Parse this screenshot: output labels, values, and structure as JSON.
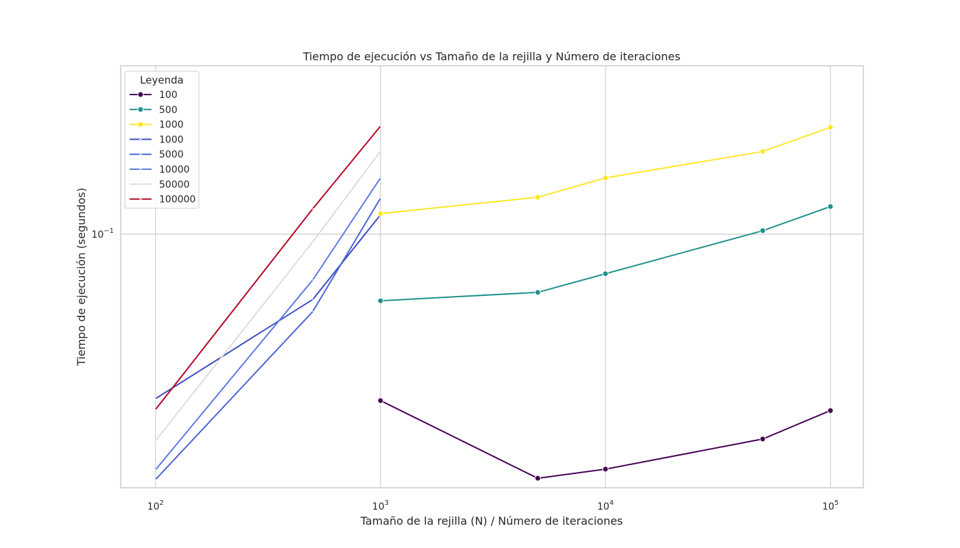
{
  "chart_data": {
    "type": "line",
    "title": "Tiempo de ejecución vs Tamaño de la rejilla y Número de iteraciones",
    "xlabel": "Tamaño de la rejilla (N) / Número de iteraciones",
    "ylabel": "Tiempo de ejecución (segundos)",
    "xscale": "log",
    "yscale": "log",
    "xlim": [
      70,
      140000
    ],
    "ylim": [
      0.0366,
      0.195
    ],
    "x_ticks": [
      {
        "value": 100,
        "base": "10",
        "exp": "2"
      },
      {
        "value": 1000,
        "base": "10",
        "exp": "3"
      },
      {
        "value": 10000,
        "base": "10",
        "exp": "4"
      },
      {
        "value": 100000,
        "base": "10",
        "exp": "5"
      }
    ],
    "y_ticks": [
      {
        "value": 0.1,
        "base": "10",
        "exp": "−1"
      }
    ],
    "grid": true,
    "legend": {
      "title": "Leyenda",
      "placement": "top-left"
    },
    "series": [
      {
        "name": "100",
        "group": "grid",
        "color": "#440154",
        "marker": "circle",
        "x": [
          1000,
          5000,
          10000,
          50000,
          100000
        ],
        "y": [
          0.0517,
          0.038,
          0.0394,
          0.0444,
          0.0497
        ]
      },
      {
        "name": "500",
        "group": "grid",
        "color": "#21918c",
        "marker": "circle",
        "x": [
          1000,
          5000,
          10000,
          50000,
          100000
        ],
        "y": [
          0.0768,
          0.0794,
          0.0855,
          0.1014,
          0.1116
        ]
      },
      {
        "name": "1000",
        "group": "grid",
        "color": "#fde725",
        "marker": "circle",
        "x": [
          1000,
          5000,
          10000,
          50000,
          100000
        ],
        "y": [
          0.1085,
          0.1158,
          0.125,
          0.1388,
          0.1528
        ]
      },
      {
        "name": "1000",
        "group": "iter",
        "color": "#3b4cc0",
        "marker": "line",
        "x": [
          100,
          500,
          1000
        ],
        "y": [
          0.0521,
          0.0772,
          0.108
        ]
      },
      {
        "name": "5000",
        "group": "iter",
        "color": "#4a64d4",
        "marker": "line",
        "x": [
          100,
          500,
          1000
        ],
        "y": [
          0.0378,
          0.0736,
          0.1154
        ]
      },
      {
        "name": "10000",
        "group": "iter",
        "color": "#5b7ae2",
        "marker": "line",
        "x": [
          100,
          500,
          1000
        ],
        "y": [
          0.0393,
          0.0834,
          0.125
        ]
      },
      {
        "name": "50000",
        "group": "iter",
        "color": "#dddddd",
        "marker": "line",
        "x": [
          100,
          500,
          1000
        ],
        "y": [
          0.0441,
          0.097,
          0.139
        ]
      },
      {
        "name": "100000",
        "group": "iter",
        "color": "#b40426",
        "marker": "line",
        "x": [
          100,
          500,
          1000
        ],
        "y": [
          0.0499,
          0.1106,
          0.1535
        ]
      }
    ]
  }
}
